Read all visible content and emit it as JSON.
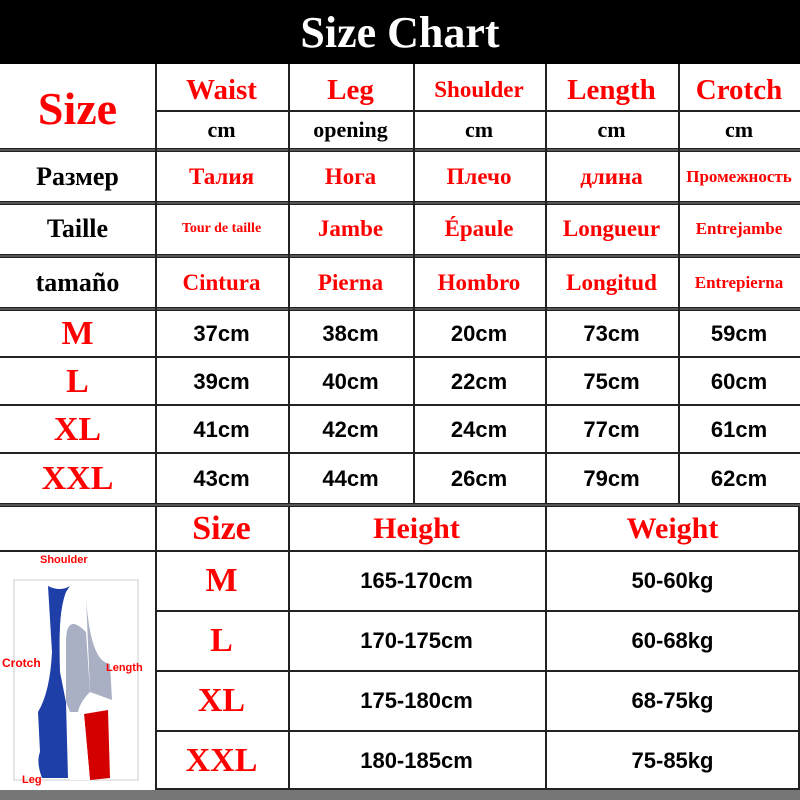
{
  "title": "Size Chart",
  "size_table": {
    "size_label": "Size",
    "columns": [
      {
        "name": "Waist",
        "unit": "cm",
        "ru": "Талия",
        "fr": "Tour de taille",
        "es": "Cintura"
      },
      {
        "name": "Leg",
        "unit": "opening",
        "ru": "Нога",
        "fr": "Jambe",
        "es": "Pierna"
      },
      {
        "name": "Shoulder",
        "unit": "cm",
        "ru": "Плечо",
        "fr": "Épaule",
        "es": "Hombro"
      },
      {
        "name": "Length",
        "unit": "cm",
        "ru": "длина",
        "fr": "Longueur",
        "es": "Longitud"
      },
      {
        "name": "Crotch",
        "unit": "cm",
        "ru": "Промежность",
        "fr": "Entrejambe",
        "es": "Entrepierna"
      }
    ],
    "lang_labels": {
      "ru": "Размер",
      "fr": "Taille",
      "es": "tamaño"
    },
    "rows": [
      {
        "size": "M",
        "values": [
          "37cm",
          "38cm",
          "20cm",
          "73cm",
          "59cm"
        ]
      },
      {
        "size": "L",
        "values": [
          "39cm",
          "40cm",
          "22cm",
          "75cm",
          "60cm"
        ]
      },
      {
        "size": "XL",
        "values": [
          "41cm",
          "42cm",
          "24cm",
          "77cm",
          "61cm"
        ]
      },
      {
        "size": "XXL",
        "values": [
          "43cm",
          "44cm",
          "26cm",
          "79cm",
          "62cm"
        ]
      }
    ]
  },
  "fit_table": {
    "headers": {
      "size": "Size",
      "height": "Height",
      "weight": "Weight"
    },
    "rows": [
      {
        "size": "M",
        "height": "165-170cm",
        "weight": "50-60kg"
      },
      {
        "size": "L",
        "height": "170-175cm",
        "weight": "60-68kg"
      },
      {
        "size": "XL",
        "height": "175-180cm",
        "weight": "68-75kg"
      },
      {
        "size": "XXL",
        "height": "180-185cm",
        "weight": "75-85kg"
      }
    ]
  },
  "diagram": {
    "labels": {
      "shoulder": "Shoulder",
      "crotch": "Crotch",
      "length": "Length",
      "leg": "Leg"
    },
    "colors": {
      "blue": "#1f3fa8",
      "red": "#d40000",
      "gray": "#aab0c4"
    }
  }
}
